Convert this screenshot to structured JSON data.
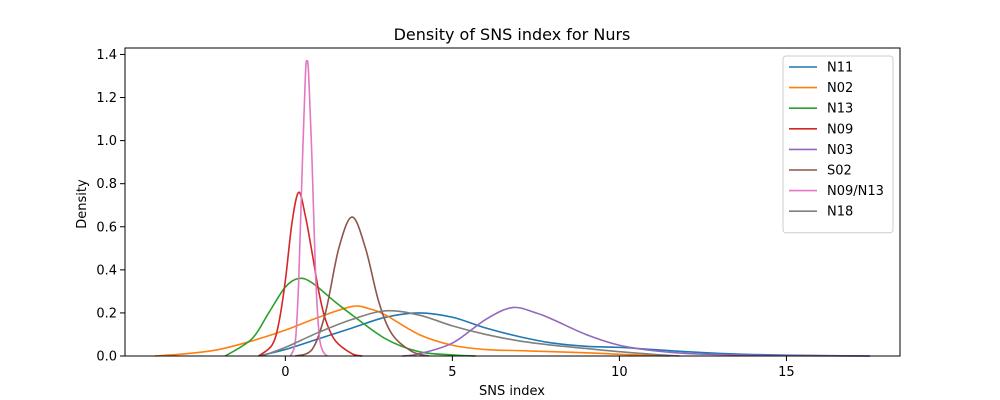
{
  "chart_data": {
    "type": "line",
    "title": "Density of SNS index for Nurs",
    "xlabel": "SNS index",
    "ylabel": "Density",
    "xlim": [
      -4.8,
      18.4
    ],
    "ylim": [
      0,
      1.43
    ],
    "x_ticks": [
      0,
      5,
      10,
      15
    ],
    "y_ticks": [
      0.0,
      0.2,
      0.4,
      0.6,
      0.8,
      1.0,
      1.2,
      1.4
    ],
    "legend_position": "top-right",
    "grid": false,
    "series": [
      {
        "name": "N11",
        "color": "#1f77b4",
        "x": [
          -0.8,
          0,
          1,
          2,
          3,
          4,
          5,
          6,
          7,
          8,
          9,
          10,
          11,
          12,
          13,
          14,
          15,
          16,
          17.5
        ],
        "y": [
          0.0,
          0.03,
          0.08,
          0.13,
          0.18,
          0.2,
          0.18,
          0.13,
          0.09,
          0.06,
          0.045,
          0.04,
          0.03,
          0.02,
          0.012,
          0.007,
          0.004,
          0.002,
          0.0
        ]
      },
      {
        "name": "N02",
        "color": "#ff7f0e",
        "x": [
          -3.9,
          -3,
          -2,
          -1,
          0,
          1,
          2,
          2.5,
          3,
          4,
          5,
          6,
          7,
          8,
          9,
          10,
          11.5
        ],
        "y": [
          0.0,
          0.01,
          0.03,
          0.07,
          0.12,
          0.18,
          0.23,
          0.22,
          0.19,
          0.1,
          0.05,
          0.03,
          0.025,
          0.02,
          0.015,
          0.008,
          0.0
        ]
      },
      {
        "name": "N13",
        "color": "#2ca02c",
        "x": [
          -1.8,
          -1,
          -0.5,
          0,
          0.4,
          0.8,
          1.5,
          2,
          3,
          4,
          5,
          5.7
        ],
        "y": [
          0.0,
          0.08,
          0.2,
          0.32,
          0.36,
          0.34,
          0.25,
          0.19,
          0.08,
          0.02,
          0.005,
          0.0
        ]
      },
      {
        "name": "N09",
        "color": "#d62728",
        "x": [
          -0.8,
          -0.4,
          -0.2,
          0,
          0.2,
          0.4,
          0.6,
          0.8,
          1,
          1.2,
          1.5,
          2,
          2.3
        ],
        "y": [
          0.0,
          0.05,
          0.15,
          0.35,
          0.62,
          0.76,
          0.65,
          0.48,
          0.3,
          0.17,
          0.07,
          0.01,
          0.0
        ]
      },
      {
        "name": "N03",
        "color": "#9467bd",
        "x": [
          3.5,
          4,
          5,
          6,
          6.8,
          7.5,
          8,
          9,
          10,
          11,
          12,
          13,
          14,
          15,
          16,
          17.5
        ],
        "y": [
          0.0,
          0.01,
          0.06,
          0.17,
          0.225,
          0.2,
          0.17,
          0.1,
          0.05,
          0.025,
          0.012,
          0.007,
          0.004,
          0.002,
          0.001,
          0.0
        ]
      },
      {
        "name": "S02",
        "color": "#8c564b",
        "x": [
          0.3,
          0.8,
          1.2,
          1.6,
          2,
          2.4,
          2.8,
          3.2,
          3.8,
          4.3
        ],
        "y": [
          0.0,
          0.03,
          0.2,
          0.5,
          0.645,
          0.5,
          0.25,
          0.1,
          0.02,
          0.0
        ]
      },
      {
        "name": "N09/N13",
        "color": "#e377c2",
        "x": [
          0.15,
          0.3,
          0.4,
          0.5,
          0.6,
          0.65,
          0.7,
          0.8,
          0.9,
          1.0,
          1.1,
          1.25
        ],
        "y": [
          0.0,
          0.07,
          0.35,
          0.85,
          1.3,
          1.37,
          1.3,
          0.9,
          0.4,
          0.12,
          0.03,
          0.0
        ]
      },
      {
        "name": "N18",
        "color": "#7f7f7f",
        "x": [
          -0.7,
          0,
          1,
          2,
          3,
          4,
          5,
          6,
          7,
          8,
          9,
          10,
          11,
          11.8
        ],
        "y": [
          0.0,
          0.04,
          0.11,
          0.17,
          0.21,
          0.19,
          0.14,
          0.1,
          0.07,
          0.05,
          0.035,
          0.02,
          0.008,
          0.0
        ]
      }
    ]
  }
}
